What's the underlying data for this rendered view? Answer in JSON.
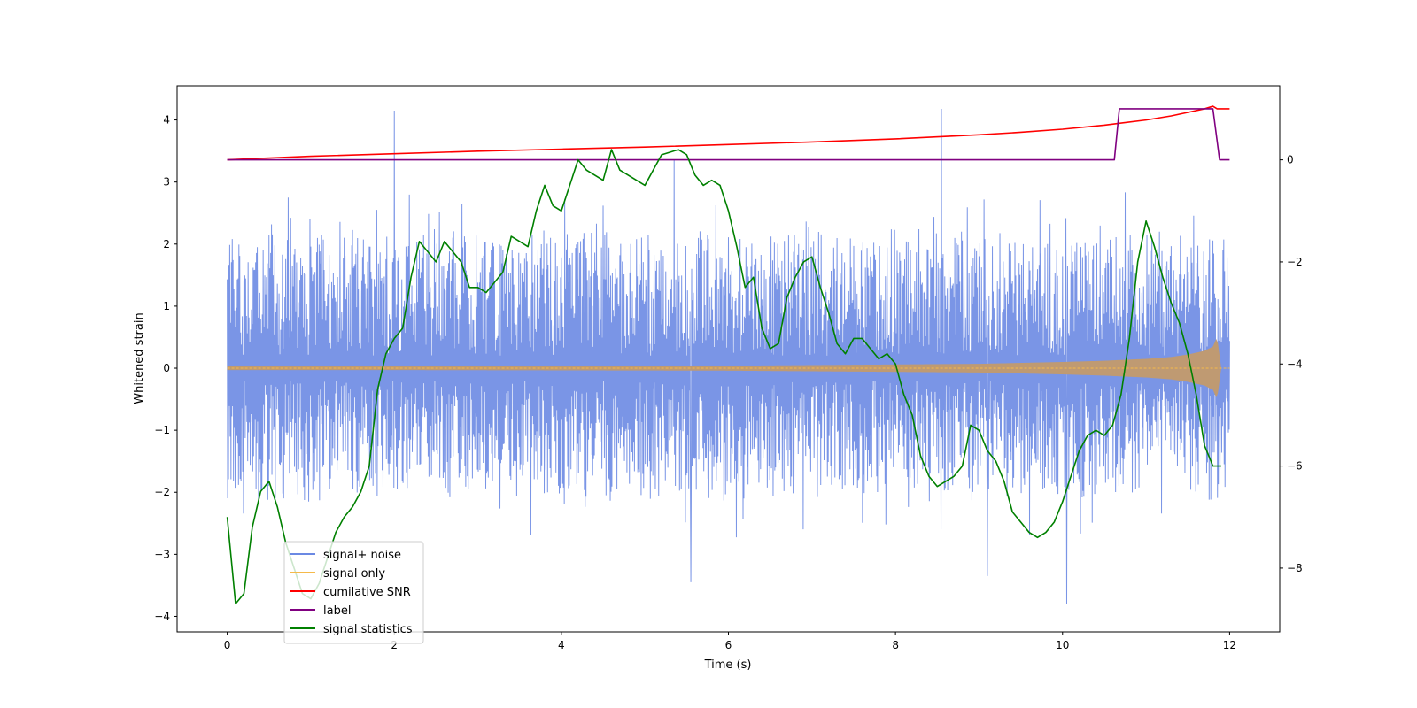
{
  "chart_data": {
    "type": "line",
    "xlabel": "Time (s)",
    "ylabel": "Whitened strain",
    "xlim": [
      -0.6,
      12.6
    ],
    "ylim": [
      -4.25,
      4.55
    ],
    "ylim_right": [
      -9.25,
      1.45
    ],
    "x_ticks": [
      0,
      2,
      4,
      6,
      8,
      10,
      12
    ],
    "x_tick_labels": [
      "0",
      "2",
      "4",
      "6",
      "8",
      "10",
      "12"
    ],
    "y_ticks": [
      -4,
      -3,
      -2,
      -1,
      0,
      1,
      2,
      3,
      4
    ],
    "y_tick_labels": [
      "−4",
      "−3",
      "−2",
      "−1",
      "0",
      "1",
      "2",
      "3",
      "4"
    ],
    "y_ticks_right": [
      -8,
      -6,
      -4,
      -2,
      0
    ],
    "y_tick_labels_right": [
      "−8",
      "−6",
      "−4",
      "−2",
      "0"
    ],
    "legend_position": "lower-left",
    "noise": {
      "t_start": 0,
      "t_end": 12.0,
      "envelope_hi": 2.3,
      "envelope_lo": -2.2,
      "spikes": [
        {
          "t": 2.0,
          "v": 4.15
        },
        {
          "t": 8.55,
          "v": 4.18
        },
        {
          "t": 5.35,
          "v": 3.35
        },
        {
          "t": 10.05,
          "v": -3.8
        },
        {
          "t": 5.55,
          "v": -3.45
        },
        {
          "t": 9.1,
          "v": -3.35
        }
      ]
    },
    "signal_only": {
      "t": [
        0,
        2,
        4,
        6,
        8,
        9,
        10,
        10.5,
        11,
        11.3,
        11.5,
        11.7,
        11.8,
        11.85,
        11.9,
        12.0
      ],
      "amp": [
        0.03,
        0.03,
        0.035,
        0.04,
        0.06,
        0.07,
        0.1,
        0.12,
        0.15,
        0.18,
        0.22,
        0.28,
        0.35,
        0.5,
        0.0,
        0.0
      ]
    },
    "series": [
      {
        "name": "signal+ noise",
        "color": "#6b89e3",
        "axis": "left"
      },
      {
        "name": "signal only",
        "color": "#f5b94a",
        "axis": "left"
      },
      {
        "name": "cumilative SNR",
        "color": "#ff0000",
        "axis": "right",
        "x": [
          0,
          1,
          2,
          3,
          4,
          5,
          6,
          7,
          8,
          9,
          9.5,
          10,
          10.5,
          11,
          11.3,
          11.5,
          11.7,
          11.8,
          11.85,
          12.0
        ],
        "y": [
          0,
          0.07,
          0.12,
          0.17,
          0.21,
          0.25,
          0.3,
          0.35,
          0.41,
          0.49,
          0.54,
          0.6,
          0.68,
          0.78,
          0.86,
          0.93,
          1.0,
          1.05,
          1.0,
          1.0
        ]
      },
      {
        "name": "label",
        "color": "#800080",
        "axis": "right",
        "x": [
          0,
          10.62,
          10.68,
          11.8,
          11.88,
          12.0
        ],
        "y": [
          0,
          0,
          1.0,
          1.0,
          0,
          0
        ]
      },
      {
        "name": "signal statistics",
        "color": "#008000",
        "axis": "right",
        "x": [
          0,
          0.1,
          0.2,
          0.3,
          0.4,
          0.5,
          0.6,
          0.7,
          0.8,
          0.9,
          1.0,
          1.1,
          1.2,
          1.3,
          1.4,
          1.5,
          1.6,
          1.7,
          1.8,
          1.9,
          2.0,
          2.1,
          2.2,
          2.3,
          2.4,
          2.5,
          2.6,
          2.7,
          2.8,
          2.9,
          3.0,
          3.1,
          3.2,
          3.3,
          3.4,
          3.5,
          3.6,
          3.7,
          3.8,
          3.9,
          4.0,
          4.1,
          4.2,
          4.3,
          4.4,
          4.5,
          4.6,
          4.7,
          4.8,
          4.9,
          5.0,
          5.1,
          5.2,
          5.3,
          5.4,
          5.5,
          5.6,
          5.7,
          5.8,
          5.9,
          6.0,
          6.1,
          6.2,
          6.3,
          6.4,
          6.5,
          6.6,
          6.7,
          6.8,
          6.9,
          7.0,
          7.1,
          7.2,
          7.3,
          7.4,
          7.5,
          7.6,
          7.7,
          7.8,
          7.9,
          8.0,
          8.1,
          8.2,
          8.3,
          8.4,
          8.5,
          8.6,
          8.7,
          8.8,
          8.9,
          9.0,
          9.1,
          9.2,
          9.3,
          9.4,
          9.5,
          9.6,
          9.7,
          9.8,
          9.9,
          10.0,
          10.1,
          10.2,
          10.3,
          10.4,
          10.5,
          10.6,
          10.7,
          10.8,
          10.9,
          11.0,
          11.1,
          11.2,
          11.3,
          11.4,
          11.5,
          11.6,
          11.7,
          11.8,
          11.9
        ],
        "y": [
          -7.0,
          -8.7,
          -8.5,
          -7.2,
          -6.5,
          -6.3,
          -6.8,
          -7.5,
          -8.0,
          -8.5,
          -8.6,
          -8.3,
          -7.8,
          -7.3,
          -7.0,
          -6.8,
          -6.5,
          -6.0,
          -4.5,
          -3.8,
          -3.5,
          -3.3,
          -2.3,
          -1.6,
          -1.8,
          -2.0,
          -1.6,
          -1.8,
          -2.0,
          -2.5,
          -2.5,
          -2.6,
          -2.4,
          -2.2,
          -1.5,
          -1.6,
          -1.7,
          -1.0,
          -0.5,
          -0.9,
          -1.0,
          -0.5,
          0.0,
          -0.2,
          -0.3,
          -0.4,
          0.2,
          -0.2,
          -0.3,
          -0.4,
          -0.5,
          -0.2,
          0.1,
          0.15,
          0.2,
          0.1,
          -0.3,
          -0.5,
          -0.4,
          -0.5,
          -1.0,
          -1.7,
          -2.5,
          -2.3,
          -3.3,
          -3.7,
          -3.6,
          -2.7,
          -2.3,
          -2.0,
          -1.9,
          -2.5,
          -3.0,
          -3.6,
          -3.8,
          -3.5,
          -3.5,
          -3.7,
          -3.9,
          -3.8,
          -4.0,
          -4.6,
          -5.0,
          -5.8,
          -6.2,
          -6.4,
          -6.3,
          -6.2,
          -6.0,
          -5.2,
          -5.3,
          -5.7,
          -5.9,
          -6.3,
          -6.9,
          -7.1,
          -7.3,
          -7.4,
          -7.3,
          -7.1,
          -6.7,
          -6.2,
          -5.7,
          -5.4,
          -5.3,
          -5.4,
          -5.2,
          -4.6,
          -3.5,
          -2.0,
          -1.2,
          -1.7,
          -2.3,
          -2.8,
          -3.2,
          -3.8,
          -4.6,
          -5.6,
          -6.0,
          -6.0
        ]
      }
    ]
  }
}
